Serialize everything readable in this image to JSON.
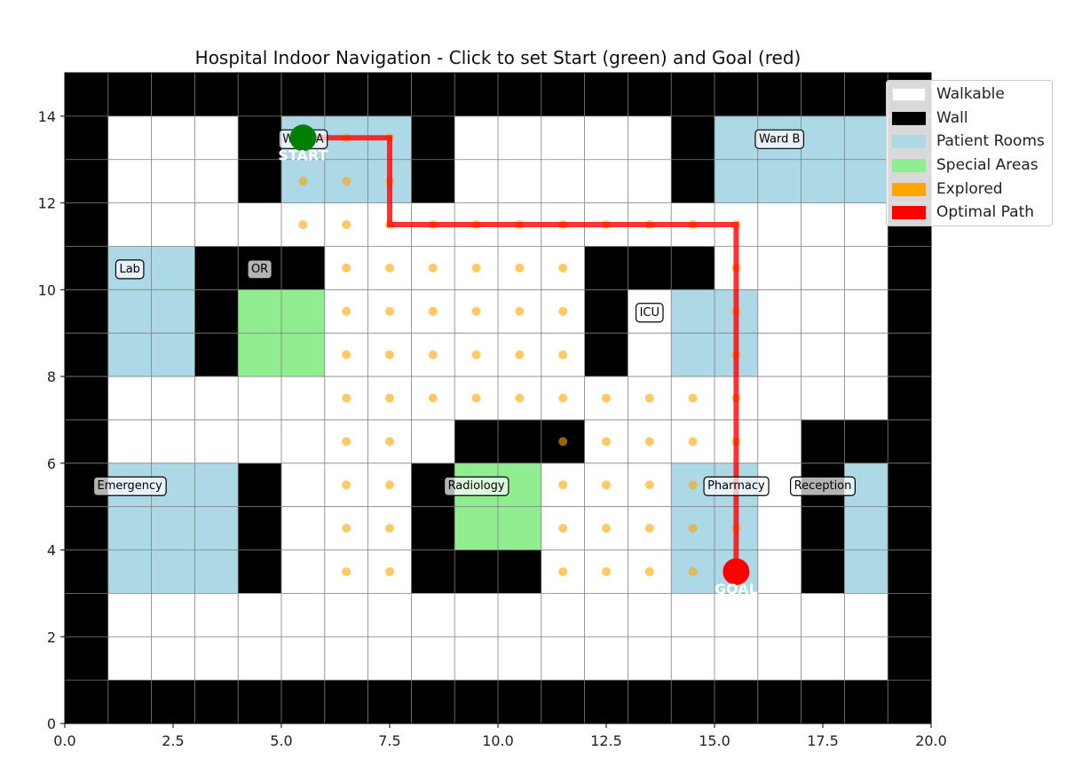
{
  "title": "Hospital Indoor Navigation - Click to set Start (green) and Goal (red)",
  "grid": {
    "cols": 20,
    "rows": 15
  },
  "axes": {
    "xlim": [
      0,
      20
    ],
    "ylim": [
      0,
      15
    ],
    "x_ticks": [
      "0.0",
      "2.5",
      "5.0",
      "7.5",
      "10.0",
      "12.5",
      "15.0",
      "17.5",
      "20.0"
    ],
    "x_tick_values": [
      0,
      2.5,
      5,
      7.5,
      10,
      12.5,
      15,
      17.5,
      20
    ],
    "y_ticks": [
      "0",
      "2",
      "4",
      "6",
      "8",
      "10",
      "12",
      "14"
    ],
    "y_tick_values": [
      0,
      2,
      4,
      6,
      8,
      10,
      12,
      14
    ]
  },
  "colors": {
    "walkable": "#ffffff",
    "wall": "#000000",
    "patient_room": "#add8e6",
    "special_area": "#90ee90",
    "explored": "#ffa500",
    "path": "#ff0000",
    "start": "#008000",
    "goal": "#ff0000",
    "grid_line": "#808080"
  },
  "legend": [
    {
      "label": "Walkable",
      "color": "#ffffff"
    },
    {
      "label": "Wall",
      "color": "#000000"
    },
    {
      "label": "Patient Rooms",
      "color": "#add8e6"
    },
    {
      "label": "Special Areas",
      "color": "#90ee90"
    },
    {
      "label": "Explored",
      "color": "#ffa500"
    },
    {
      "label": "Optimal Path",
      "color": "#ff0000"
    }
  ],
  "map_rows_top_to_bottom": [
    "WWWWWWWWWWWWWWWWWWWW",
    "W...WRRRW.....WRRRRW",
    "W...WRRRW.....WRRRRW",
    "W..................W",
    "WRRWWW......WWW....W",
    "WRRWSS......W.RR...W",
    "WRRWSS......W.RR...W",
    "W..................W",
    "W........WWW.....WWW",
    "WRRRW...WSS...RR.WRW",
    "WRRRW...WSS...RR.WRW",
    "WRRRW...WWW...RR.WRW",
    "W..................W",
    "W..................W",
    "WWWWWWWWWWWWWWWWWWWW"
  ],
  "rooms": [
    {
      "name": "Ward A",
      "x": 5.5,
      "y": 13.5
    },
    {
      "name": "Ward B",
      "x": 16.5,
      "y": 13.5
    },
    {
      "name": "Lab",
      "x": 1.5,
      "y": 10.5
    },
    {
      "name": "OR",
      "x": 4.5,
      "y": 10.5
    },
    {
      "name": "ICU",
      "x": 13.5,
      "y": 9.5
    },
    {
      "name": "Emergency",
      "x": 1.5,
      "y": 5.5
    },
    {
      "name": "Radiology",
      "x": 9.5,
      "y": 5.5
    },
    {
      "name": "Pharmacy",
      "x": 15.5,
      "y": 5.5
    },
    {
      "name": "Reception",
      "x": 17.5,
      "y": 5.5
    }
  ],
  "explored": [
    [
      6.5,
      13.5
    ],
    [
      7.5,
      13.5
    ],
    [
      5.5,
      12.5
    ],
    [
      6.5,
      12.5
    ],
    [
      7.5,
      12.5
    ],
    [
      5.5,
      11.5
    ],
    [
      6.5,
      11.5
    ],
    [
      7.5,
      11.5
    ],
    [
      8.5,
      11.5
    ],
    [
      9.5,
      11.5
    ],
    [
      10.5,
      11.5
    ],
    [
      11.5,
      11.5
    ],
    [
      12.5,
      11.5
    ],
    [
      13.5,
      11.5
    ],
    [
      14.5,
      11.5
    ],
    [
      15.5,
      11.5
    ],
    [
      6.5,
      10.5
    ],
    [
      7.5,
      10.5
    ],
    [
      8.5,
      10.5
    ],
    [
      9.5,
      10.5
    ],
    [
      10.5,
      10.5
    ],
    [
      11.5,
      10.5
    ],
    [
      15.5,
      10.5
    ],
    [
      6.5,
      9.5
    ],
    [
      7.5,
      9.5
    ],
    [
      8.5,
      9.5
    ],
    [
      9.5,
      9.5
    ],
    [
      10.5,
      9.5
    ],
    [
      11.5,
      9.5
    ],
    [
      15.5,
      9.5
    ],
    [
      6.5,
      8.5
    ],
    [
      7.5,
      8.5
    ],
    [
      8.5,
      8.5
    ],
    [
      9.5,
      8.5
    ],
    [
      10.5,
      8.5
    ],
    [
      11.5,
      8.5
    ],
    [
      15.5,
      8.5
    ],
    [
      6.5,
      7.5
    ],
    [
      7.5,
      7.5
    ],
    [
      8.5,
      7.5
    ],
    [
      9.5,
      7.5
    ],
    [
      10.5,
      7.5
    ],
    [
      11.5,
      7.5
    ],
    [
      12.5,
      7.5
    ],
    [
      13.5,
      7.5
    ],
    [
      14.5,
      7.5
    ],
    [
      15.5,
      7.5
    ],
    [
      6.5,
      6.5
    ],
    [
      7.5,
      6.5
    ],
    [
      11.5,
      6.5
    ],
    [
      12.5,
      6.5
    ],
    [
      13.5,
      6.5
    ],
    [
      14.5,
      6.5
    ],
    [
      15.5,
      6.5
    ],
    [
      6.5,
      5.5
    ],
    [
      7.5,
      5.5
    ],
    [
      11.5,
      5.5
    ],
    [
      12.5,
      5.5
    ],
    [
      13.5,
      5.5
    ],
    [
      14.5,
      5.5
    ],
    [
      6.5,
      4.5
    ],
    [
      7.5,
      4.5
    ],
    [
      11.5,
      4.5
    ],
    [
      12.5,
      4.5
    ],
    [
      13.5,
      4.5
    ],
    [
      14.5,
      4.5
    ],
    [
      15.5,
      4.5
    ],
    [
      6.5,
      3.5
    ],
    [
      7.5,
      3.5
    ],
    [
      11.5,
      3.5
    ],
    [
      12.5,
      3.5
    ],
    [
      13.5,
      3.5
    ],
    [
      14.5,
      3.5
    ]
  ],
  "path": [
    [
      5.5,
      13.5
    ],
    [
      7.5,
      13.5
    ],
    [
      7.5,
      11.5
    ],
    [
      15.5,
      11.5
    ],
    [
      15.5,
      3.5
    ]
  ],
  "start": {
    "label": "START",
    "x": 5.5,
    "y": 13.5
  },
  "goal": {
    "label": "GOAL",
    "x": 15.5,
    "y": 3.5
  }
}
